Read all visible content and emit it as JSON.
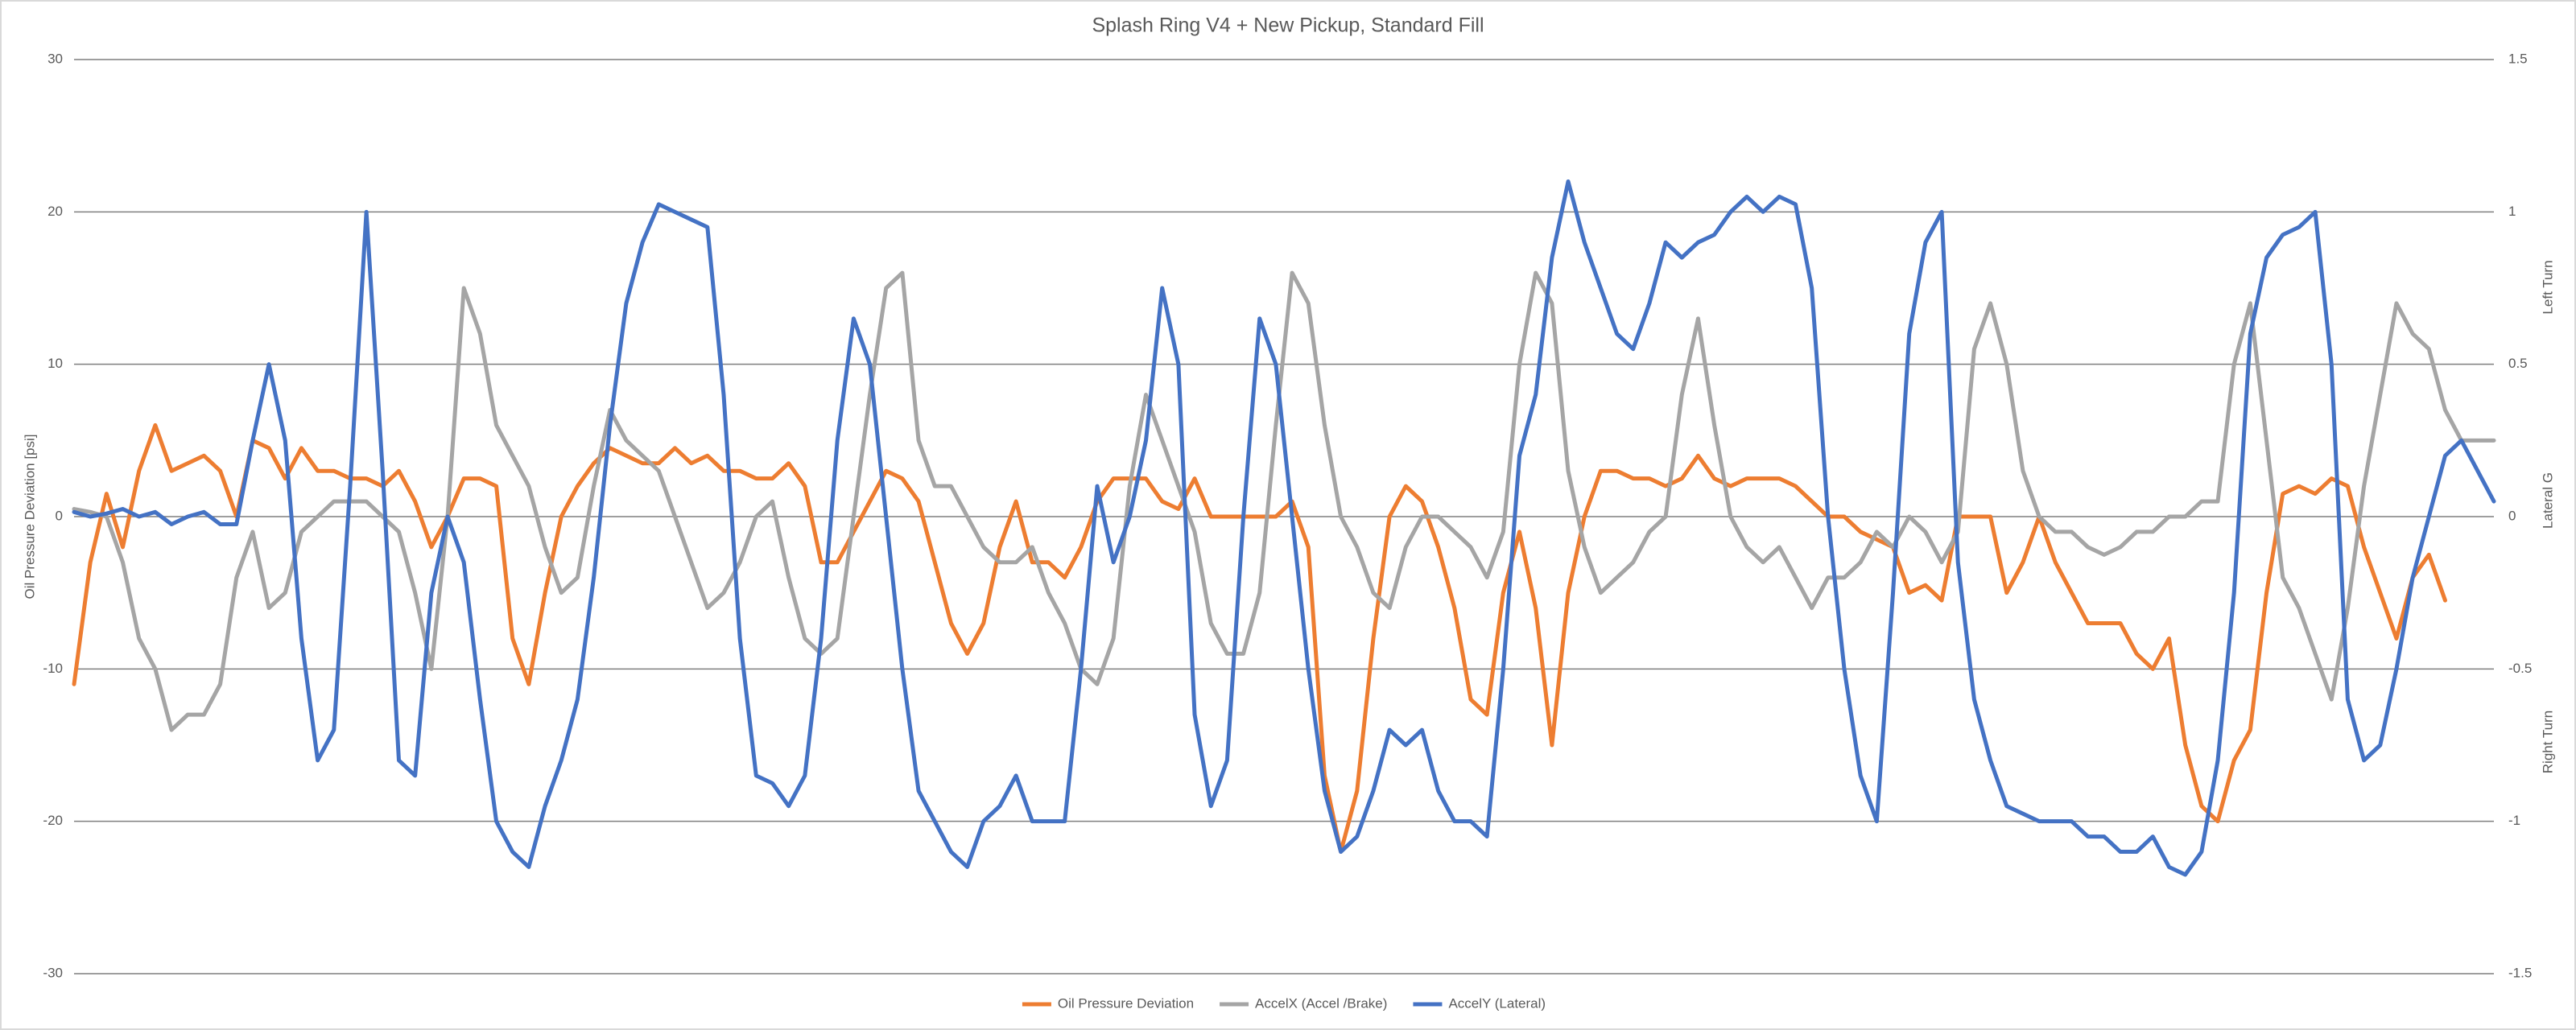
{
  "chart_data": {
    "type": "line",
    "title": "Splash Ring V4 + New Pickup, Standard Fill",
    "ylabel": "Oil Pressure Deviation [psi]",
    "y2label": "Lateral G",
    "annotations": [
      "Left Turn",
      "Right Turn"
    ],
    "ylim": [
      -30,
      30
    ],
    "yticks": [
      -30,
      -20,
      -10,
      0,
      10,
      20,
      30
    ],
    "y2lim": [
      -1.5,
      1.5
    ],
    "y2ticks": [
      -1.5,
      -1,
      -0.5,
      0,
      0.5,
      1,
      1.5
    ],
    "grid": true,
    "legend": "bottom",
    "series": [
      {
        "name": "Oil Pressure Deviation",
        "color": "#ed7d31",
        "values": [
          -11,
          -3,
          1.5,
          -2,
          3,
          6,
          3,
          3.5,
          4,
          3,
          0,
          5,
          4.5,
          2.5,
          4.5,
          3,
          3,
          2.5,
          2.5,
          2,
          3,
          1,
          -2,
          0,
          2.5,
          2.5,
          2,
          -8,
          -11,
          -5,
          0,
          2,
          3.5,
          4.5,
          4,
          3.5,
          3.5,
          4.5,
          3.5,
          4,
          3,
          3,
          2.5,
          2.5,
          3.5,
          2,
          -3,
          -3,
          -1,
          1,
          3,
          2.5,
          1,
          -3,
          -7,
          -9,
          -7,
          -2,
          1,
          -3,
          -3,
          -4,
          -2,
          1,
          2.5,
          2.5,
          2.5,
          1,
          0.5,
          2.5,
          0,
          0,
          0,
          0,
          0,
          1,
          -2,
          -17,
          -22,
          -18,
          -8,
          0,
          2,
          1,
          -2,
          -6,
          -12,
          -13,
          -5,
          -1,
          -6,
          -15,
          -5,
          0,
          3,
          3,
          2.5,
          2.5,
          2,
          2.5,
          4,
          2.5,
          2,
          2.5,
          2.5,
          2.5,
          2,
          1,
          0,
          0,
          -1,
          -1.5,
          -2,
          -5,
          -4.5,
          -5.5,
          0,
          0,
          0,
          -5,
          -3,
          0,
          -3,
          -5,
          -7,
          -7,
          -7,
          -9,
          -10,
          -8,
          -15,
          -19,
          -20,
          -16,
          -14,
          -5,
          1.5,
          2,
          1.5,
          2.5,
          2,
          -2,
          -5,
          -8,
          -4,
          -2.5,
          -5.5,
          null,
          null,
          null
        ]
      },
      {
        "name": "AccelX (Accel /Brake)",
        "color": "#a5a5a5",
        "axis": "y2",
        "values": [
          0.025,
          0.015,
          0,
          -0.15,
          -0.4,
          -0.5,
          -0.7,
          -0.65,
          -0.65,
          -0.55,
          -0.2,
          -0.05,
          -0.3,
          -0.25,
          -0.05,
          0,
          0.05,
          0.05,
          0.05,
          0,
          -0.05,
          -0.25,
          -0.5,
          0,
          0.75,
          0.6,
          0.3,
          0.2,
          0.1,
          -0.1,
          -0.25,
          -0.2,
          0.1,
          0.35,
          0.25,
          0.2,
          0.15,
          0,
          -0.15,
          -0.3,
          -0.25,
          -0.15,
          0,
          0.05,
          -0.2,
          -0.4,
          -0.45,
          -0.4,
          0,
          0.4,
          0.75,
          0.8,
          0.25,
          0.1,
          0.1,
          0,
          -0.1,
          -0.15,
          -0.15,
          -0.1,
          -0.25,
          -0.35,
          -0.5,
          -0.55,
          -0.4,
          0.1,
          0.4,
          0.25,
          0.1,
          -0.05,
          -0.35,
          -0.45,
          -0.45,
          -0.25,
          0.3,
          0.8,
          0.7,
          0.3,
          0,
          -0.1,
          -0.25,
          -0.3,
          -0.1,
          0,
          0,
          -0.05,
          -0.1,
          -0.2,
          -0.05,
          0.5,
          0.8,
          0.7,
          0.15,
          -0.1,
          -0.25,
          -0.2,
          -0.15,
          -0.05,
          0,
          0.4,
          0.65,
          0.3,
          0,
          -0.1,
          -0.15,
          -0.1,
          -0.2,
          -0.3,
          -0.2,
          -0.2,
          -0.15,
          -0.05,
          -0.1,
          0,
          -0.05,
          -0.15,
          -0.05,
          0.55,
          0.7,
          0.5,
          0.15,
          0,
          -0.05,
          -0.05,
          -0.1,
          -0.125,
          -0.1,
          -0.05,
          -0.05,
          0,
          0,
          0.05,
          0.05,
          0.5,
          0.7,
          0.25,
          -0.2,
          -0.3,
          -0.45,
          -0.6,
          -0.3,
          0.1,
          0.4,
          0.7,
          0.6,
          0.55,
          0.35,
          0.25,
          0.25,
          0.25
        ]
      },
      {
        "name": "AccelY (Lateral)",
        "color": "#4472c4",
        "axis": "y2",
        "values": [
          0.015,
          0,
          0.01,
          0.025,
          0,
          0.015,
          -0.025,
          0,
          0.015,
          -0.025,
          -0.025,
          0.25,
          0.5,
          0.25,
          -0.4,
          -0.8,
          -0.7,
          0.1,
          1,
          0.15,
          -0.8,
          -0.85,
          -0.25,
          0,
          -0.15,
          -0.6,
          -1,
          -1.1,
          -1.15,
          -0.95,
          -0.8,
          -0.6,
          -0.2,
          0.3,
          0.7,
          0.9,
          1.025,
          1,
          0.975,
          0.95,
          0.4,
          -0.4,
          -0.85,
          -0.875,
          -0.95,
          -0.85,
          -0.4,
          0.25,
          0.65,
          0.5,
          0,
          -0.5,
          -0.9,
          -1,
          -1.1,
          -1.15,
          -1,
          -0.95,
          -0.85,
          -1,
          -1,
          -1,
          -0.5,
          0.1,
          -0.15,
          0,
          0.25,
          0.75,
          0.5,
          -0.65,
          -0.95,
          -0.8,
          0,
          0.65,
          0.5,
          0,
          -0.5,
          -0.9,
          -1.1,
          -1.05,
          -0.9,
          -0.7,
          -0.75,
          -0.7,
          -0.9,
          -1,
          -1,
          -1.05,
          -0.5,
          0.2,
          0.4,
          0.85,
          1.1,
          0.9,
          0.75,
          0.6,
          0.55,
          0.7,
          0.9,
          0.85,
          0.9,
          0.925,
          1,
          1.05,
          1,
          1.05,
          1.025,
          0.75,
          0,
          -0.5,
          -0.85,
          -1,
          -0.25,
          0.6,
          0.9,
          1,
          -0.15,
          -0.6,
          -0.8,
          -0.95,
          -0.975,
          -1,
          -1,
          -1,
          -1.05,
          -1.05,
          -1.1,
          -1.1,
          -1.05,
          -1.15,
          -1.175,
          -1.1,
          -0.8,
          -0.25,
          0.6,
          0.85,
          0.925,
          0.95,
          1,
          0.5,
          -0.6,
          -0.8,
          -0.75,
          -0.5,
          -0.2,
          0,
          0.2,
          0.25,
          0.15,
          0.05
        ]
      }
    ]
  }
}
